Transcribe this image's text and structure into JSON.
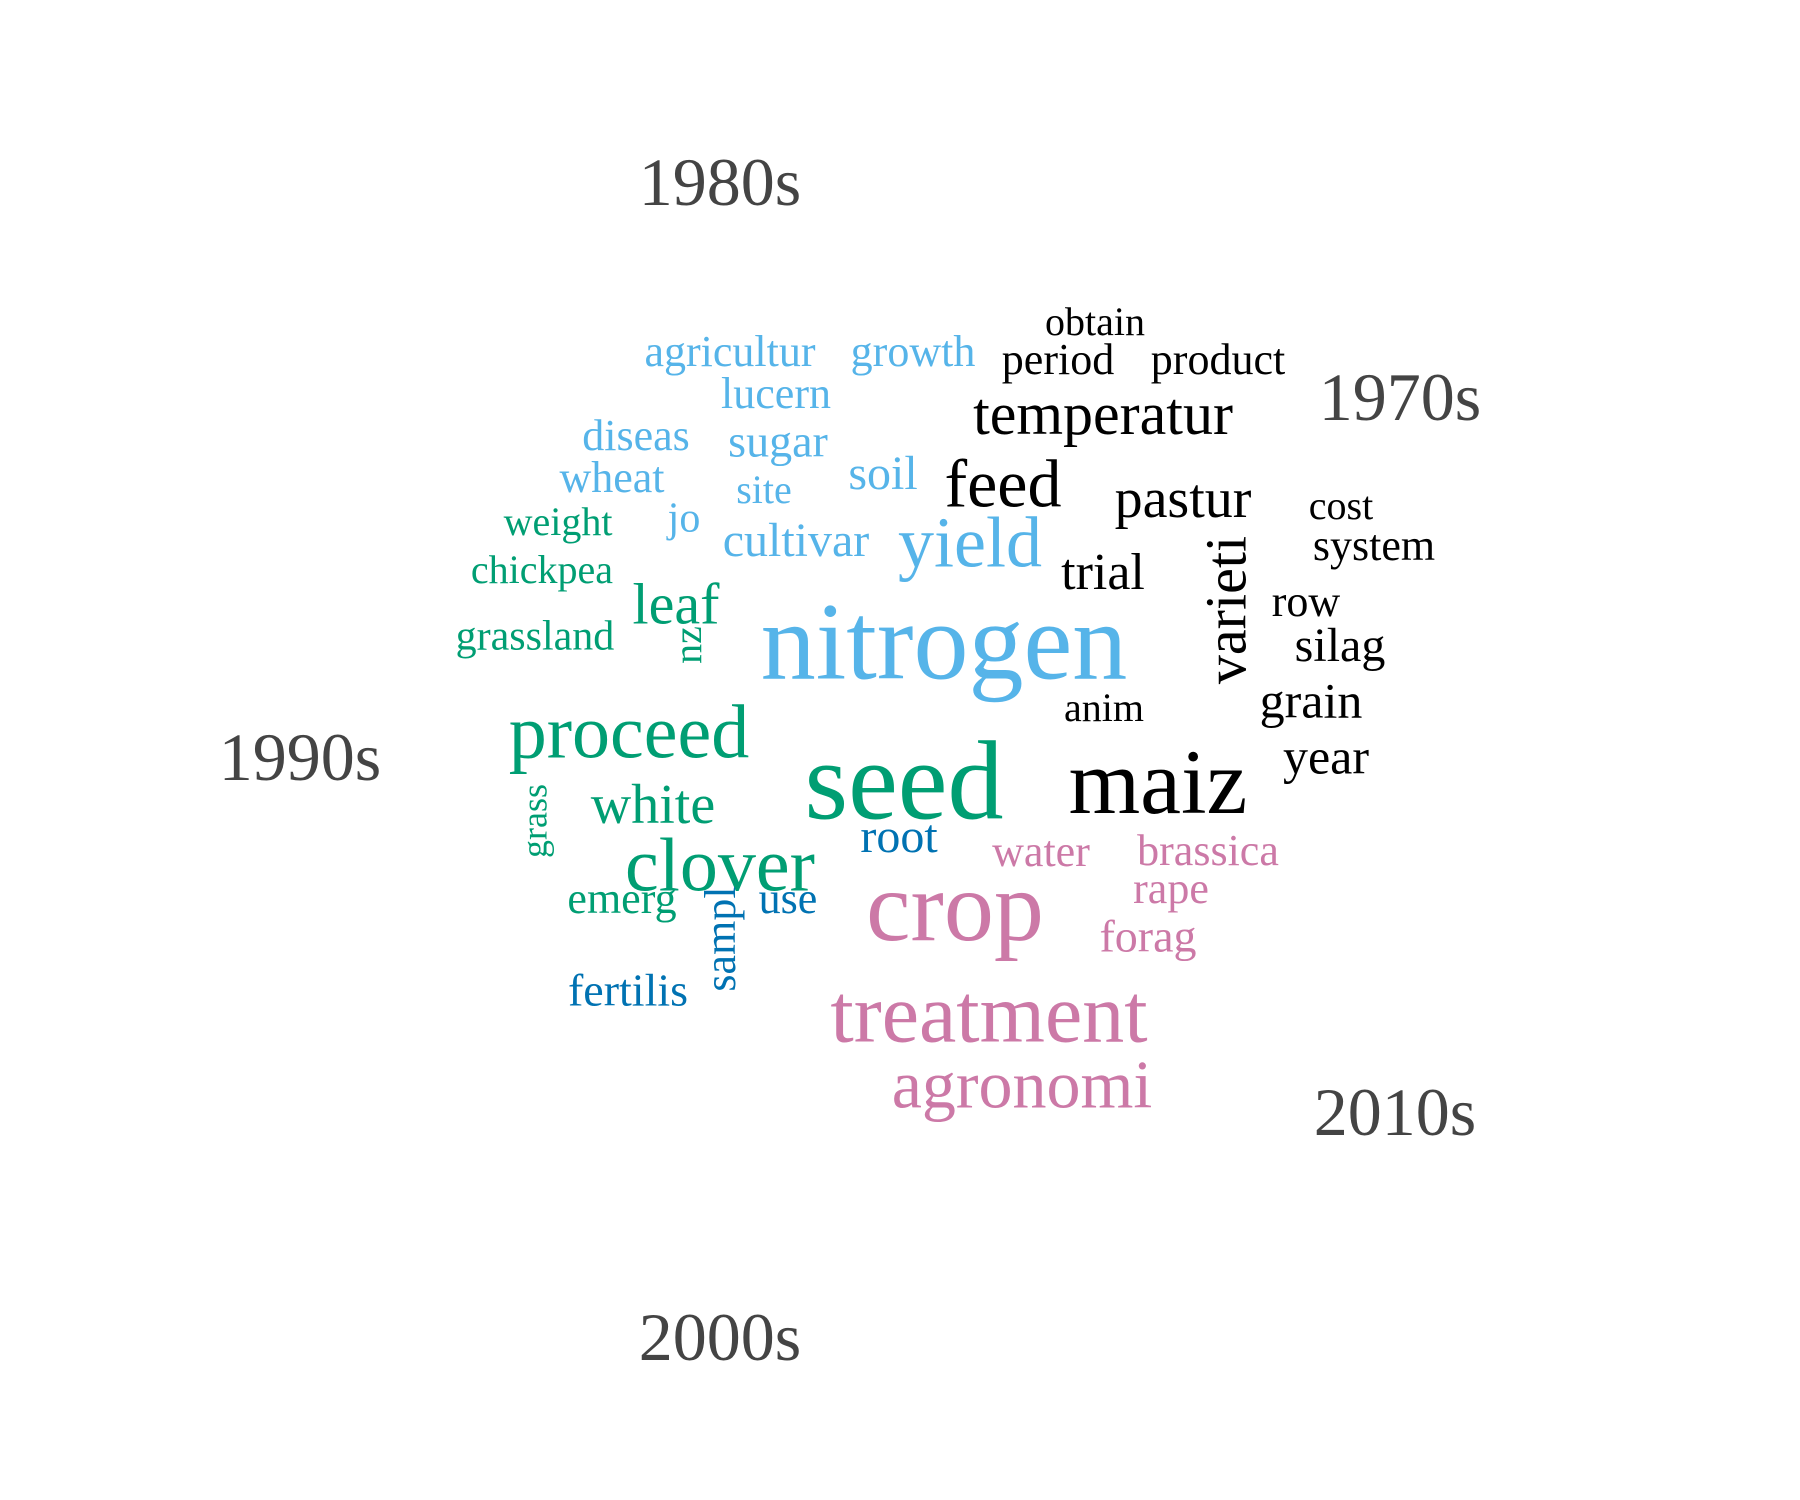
{
  "chart_data": {
    "type": "wordcloud",
    "groups": [
      {
        "label": "1970s",
        "color": "#000000",
        "words": [
          "obtain",
          "period",
          "product",
          "temperatur",
          "feed",
          "pastur",
          "cost",
          "system",
          "trial",
          "varieti",
          "row",
          "silag",
          "grain",
          "anim",
          "maiz",
          "year"
        ]
      },
      {
        "label": "1980s",
        "color": "#56B4E9",
        "words": [
          "agricultur",
          "growth",
          "lucern",
          "diseas",
          "sugar",
          "soil",
          "wheat",
          "site",
          "jo",
          "cultivar",
          "yield",
          "nitrogen"
        ]
      },
      {
        "label": "1990s",
        "color": "#009E73",
        "words": [
          "weight",
          "chickpea",
          "grassland",
          "leaf",
          "nz",
          "proceed",
          "seed",
          "white",
          "grass",
          "clover",
          "emerg"
        ]
      },
      {
        "label": "2000s",
        "color": "#0072B2",
        "words": [
          "root",
          "use",
          "sampl",
          "fertilis"
        ]
      },
      {
        "label": "2010s",
        "color": "#CC79A7",
        "words": [
          "water",
          "brassica",
          "rape",
          "crop",
          "forag",
          "treatment",
          "agronomi"
        ]
      }
    ],
    "label_color": "#444444"
  }
}
